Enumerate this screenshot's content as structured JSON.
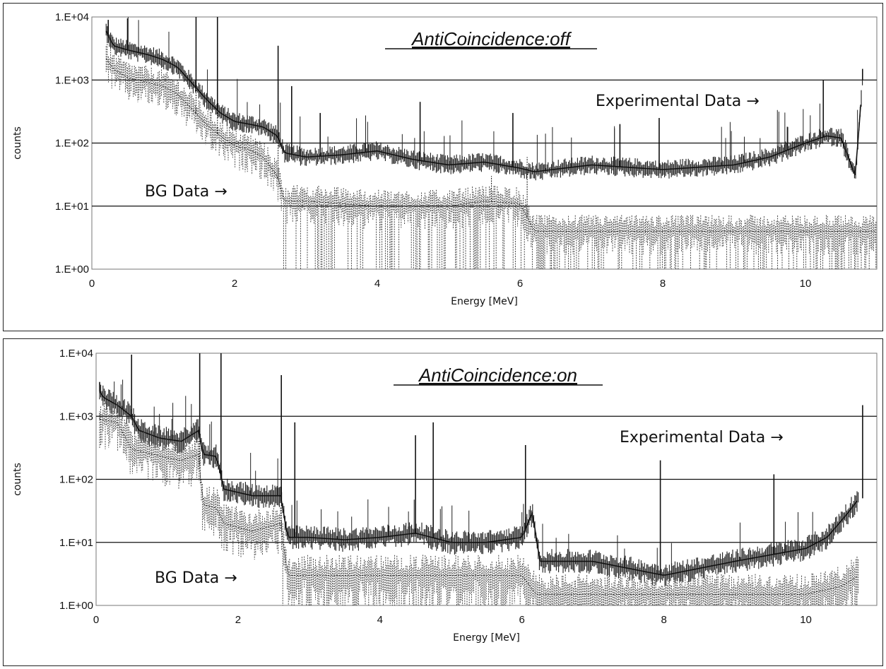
{
  "chart_data": [
    {
      "type": "line",
      "title": "AntiCoincidence:off",
      "xlabel": "Energy [MeV]",
      "ylabel": "counts",
      "xlim": [
        0,
        11
      ],
      "ylim": [
        1,
        10000
      ],
      "yscale": "log",
      "x_ticks": [
        "0",
        "2",
        "4",
        "6",
        "8",
        "10"
      ],
      "y_ticks": [
        "1.E+00",
        "1.E+01",
        "1.E+02",
        "1.E+03",
        "1.E+04"
      ],
      "grid": "horizontal",
      "annotations": [
        "Experimental Data →",
        "BG Data →"
      ],
      "series": [
        {
          "label": "Experimental Data",
          "style": "solid",
          "x": [
            0.2,
            0.3,
            0.5,
            0.8,
            1.0,
            1.2,
            1.4,
            1.6,
            1.8,
            2.0,
            2.2,
            2.4,
            2.6,
            2.7,
            3.0,
            3.5,
            4.0,
            4.5,
            5.0,
            5.5,
            6.0,
            6.2,
            7.0,
            8.0,
            9.0,
            9.5,
            10.0,
            10.3,
            10.5,
            10.7,
            10.8
          ],
          "y": [
            6000,
            3500,
            3000,
            2500,
            2100,
            1600,
            900,
            500,
            300,
            220,
            200,
            180,
            130,
            70,
            60,
            65,
            75,
            55,
            45,
            50,
            40,
            35,
            45,
            38,
            45,
            60,
            100,
            130,
            120,
            30,
            1000
          ],
          "peaks": [
            [
              0.23,
              9000
            ],
            [
              0.5,
              9500
            ],
            [
              1.46,
              10000
            ],
            [
              1.76,
              10000
            ],
            [
              2.61,
              3500
            ],
            [
              2.8,
              800
            ],
            [
              3.2,
              300
            ],
            [
              4.6,
              450
            ],
            [
              5.9,
              300
            ],
            [
              7.4,
              200
            ],
            [
              7.95,
              250
            ],
            [
              9.75,
              180
            ],
            [
              10.25,
              1000
            ],
            [
              10.8,
              1500
            ]
          ]
        },
        {
          "label": "BG Data",
          "style": "dotted",
          "x": [
            0.2,
            0.3,
            0.5,
            0.8,
            1.0,
            1.2,
            1.4,
            1.6,
            1.8,
            2.0,
            2.2,
            2.4,
            2.6,
            2.7,
            3.0,
            4.0,
            5.0,
            5.5,
            6.0,
            6.2,
            7.0,
            8.0,
            9.0,
            10.0,
            11.0
          ],
          "y": [
            2200,
            1500,
            1100,
            900,
            800,
            600,
            350,
            200,
            130,
            90,
            80,
            60,
            30,
            12,
            12,
            10,
            10,
            12,
            11,
            4,
            4,
            4,
            4,
            4,
            4
          ],
          "peaks": [
            [
              1.46,
              2500
            ],
            [
              1.76,
              900
            ],
            [
              2.61,
              900
            ],
            [
              5.6,
              30
            ],
            [
              6.1,
              60
            ]
          ]
        }
      ]
    },
    {
      "type": "line",
      "title": "AntiCoincidence:on",
      "xlabel": "Energy [MeV]",
      "ylabel": "counts",
      "xlim": [
        0,
        11
      ],
      "ylim": [
        1,
        10000
      ],
      "yscale": "log",
      "x_ticks": [
        "0",
        "2",
        "4",
        "6",
        "8",
        "10"
      ],
      "y_ticks": [
        "1.E+00",
        "1.E+01",
        "1.E+02",
        "1.E+03",
        "1.E+04"
      ],
      "grid": "horizontal",
      "annotations": [
        "Experimental Data →",
        "BG Data →"
      ],
      "series": [
        {
          "label": "Experimental Data",
          "style": "solid",
          "x": [
            0.05,
            0.1,
            0.3,
            0.5,
            0.6,
            0.9,
            1.2,
            1.45,
            1.5,
            1.7,
            1.8,
            2.2,
            2.6,
            2.7,
            3.0,
            3.5,
            4.0,
            4.5,
            5.0,
            5.5,
            6.0,
            6.15,
            6.25,
            7.0,
            8.0,
            9.0,
            10.0,
            10.3,
            10.6,
            10.75
          ],
          "y": [
            2500,
            2000,
            1500,
            1000,
            600,
            450,
            400,
            600,
            250,
            230,
            70,
            55,
            55,
            12,
            12,
            11,
            12,
            14,
            10,
            10,
            12,
            30,
            5,
            5,
            3,
            5,
            8,
            12,
            30,
            50
          ],
          "peaks": [
            [
              0.05,
              3500
            ],
            [
              0.5,
              9500
            ],
            [
              1.46,
              10000
            ],
            [
              1.76,
              10000
            ],
            [
              2.61,
              4500
            ],
            [
              2.8,
              800
            ],
            [
              4.5,
              500
            ],
            [
              4.75,
              800
            ],
            [
              6.05,
              350
            ],
            [
              7.95,
              200
            ],
            [
              9.55,
              120
            ],
            [
              10.8,
              1500
            ]
          ]
        },
        {
          "label": "BG Data",
          "style": "dotted",
          "x": [
            0.05,
            0.3,
            0.5,
            0.8,
            1.0,
            1.2,
            1.45,
            1.5,
            1.7,
            1.8,
            2.2,
            2.6,
            2.7,
            3.0,
            4.0,
            5.0,
            6.0,
            6.2,
            7.0,
            8.0,
            9.0,
            10.0,
            10.5,
            10.75
          ],
          "y": [
            900,
            800,
            300,
            250,
            220,
            200,
            250,
            40,
            35,
            20,
            15,
            20,
            3,
            3,
            3,
            3,
            3,
            1.5,
            1.5,
            1.5,
            1.5,
            1.5,
            2,
            3
          ],
          "peaks": [
            [
              0.05,
              1200
            ],
            [
              1.46,
              3500
            ],
            [
              2.61,
              900
            ]
          ]
        }
      ]
    }
  ]
}
